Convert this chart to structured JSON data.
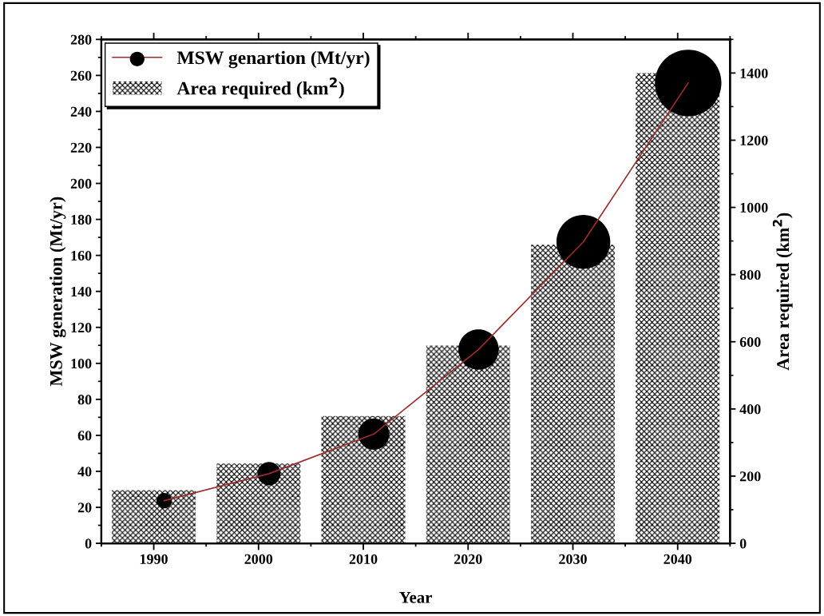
{
  "chart_data": {
    "type": "bar",
    "xlabel": "Year",
    "ylabel": "MSW generation (Mt/yr)",
    "y2label": "Area required (km$^{2}$)",
    "x": [
      1990,
      2000,
      2010,
      2020,
      2030,
      2040
    ],
    "xlim": [
      1985,
      2045
    ],
    "xticks": [
      1990,
      2000,
      2010,
      2020,
      2030,
      2040
    ],
    "ylim": [
      0,
      280
    ],
    "yticks": [
      0,
      20,
      40,
      60,
      80,
      100,
      120,
      140,
      160,
      180,
      200,
      220,
      240,
      260,
      280
    ],
    "y2lim": [
      0,
      1500
    ],
    "y2ticks": [
      0,
      200,
      400,
      600,
      800,
      1000,
      1200,
      1400
    ],
    "series": [
      {
        "type": "line",
        "color": "#9b2d2d",
        "x": [
          1991,
          2001,
          2011,
          2021,
          2031,
          2041
        ],
        "values": [
          23.7,
          38.7,
          60.7,
          107.7,
          167.5,
          255.8
        ],
        "line_style": "solid"
      },
      {
        "type": "bubble",
        "name": "MSW genartion (Mt/yr)",
        "color": "#000000",
        "x": [
          1991,
          2001,
          2011,
          2021,
          2031,
          2041
        ],
        "values": [
          23.7,
          38.7,
          60.7,
          107.7,
          167.5,
          255.8
        ],
        "sizes": [
          0.054,
          0.122,
          0.221,
          0.367,
          0.654,
          1
        ]
      },
      {
        "name": "Area required (km$^{2}$)",
        "axis": "y2",
        "color": "#000000",
        "values": [
          158,
          237,
          379,
          589,
          889,
          1400
        ]
      }
    ],
    "legend": "top left",
    "grid": false
  }
}
